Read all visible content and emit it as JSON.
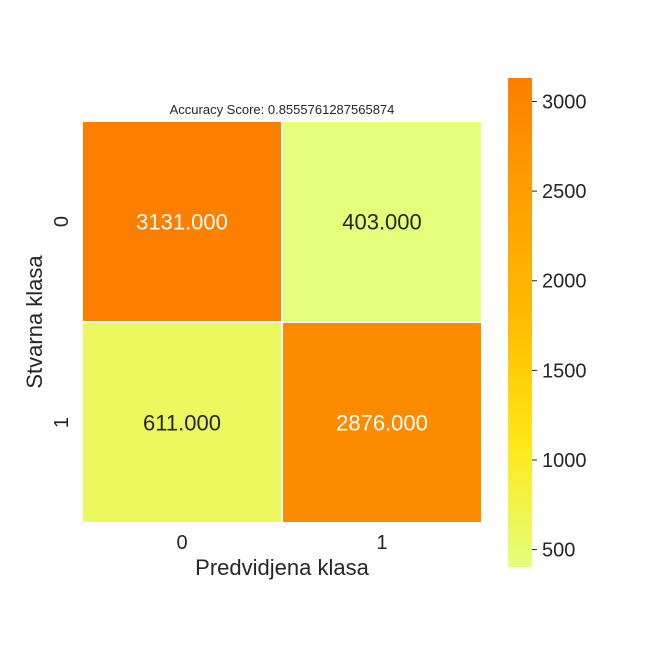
{
  "chart_data": {
    "type": "heatmap",
    "title": "Accuracy Score: 0.8555761287565874",
    "xlabel": "Predvidjena klasa",
    "ylabel": "Stvarna klasa",
    "x_categories": [
      "0",
      "1"
    ],
    "y_categories": [
      "0",
      "1"
    ],
    "values": [
      [
        3131,
        403
      ],
      [
        611,
        2876
      ]
    ],
    "cell_labels": [
      [
        "3131.000",
        "403.000"
      ],
      [
        "611.000",
        "2876.000"
      ]
    ],
    "colorbar": {
      "range": [
        403,
        3131
      ],
      "ticks": [
        500,
        1000,
        1500,
        2000,
        2500,
        3000
      ],
      "tick_labels": [
        "500",
        "1000",
        "1500",
        "2000",
        "2500",
        "3000"
      ],
      "colormap": "Wistia",
      "colors": [
        "#e4ff7a",
        "#ffe81a",
        "#ffbd00",
        "#ffa000",
        "#fc7f00"
      ]
    },
    "cell_text_colors": {
      "dark": "#262626",
      "light": "#ffffff"
    }
  }
}
